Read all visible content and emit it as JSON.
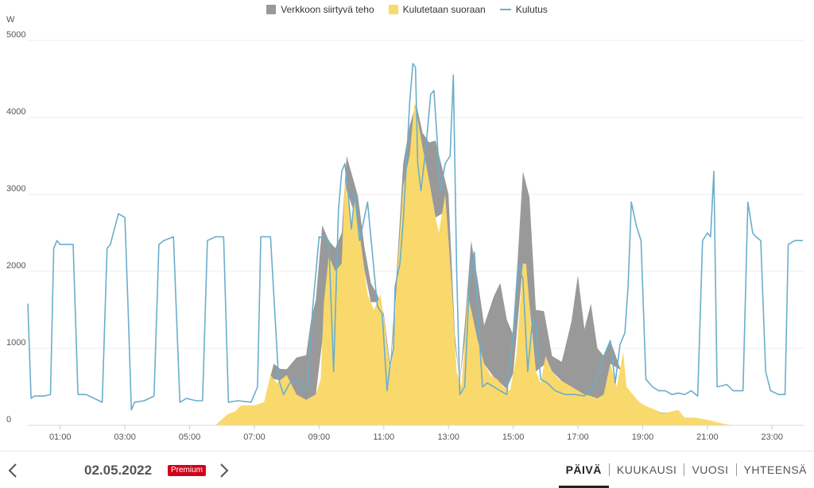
{
  "chart_data": {
    "type": "area",
    "ylabel": "W",
    "ylim": [
      0,
      5000
    ],
    "yticks": [
      "0",
      "1000",
      "2000",
      "3000",
      "4000",
      "5000"
    ],
    "xlim": [
      0,
      24
    ],
    "xticks": [
      "01:00",
      "03:00",
      "05:00",
      "07:00",
      "09:00",
      "11:00",
      "13:00",
      "15:00",
      "17:00",
      "19:00",
      "21:00",
      "23:00"
    ],
    "grid": true,
    "legend_position": "top-center",
    "series": [
      {
        "name": "Verkkoon siirtyvä teho",
        "kind": "stacked-area",
        "color": "#999999",
        "points": [
          [
            7.45,
            0
          ],
          [
            7.6,
            200
          ],
          [
            7.8,
            150
          ],
          [
            8.0,
            80
          ],
          [
            8.3,
            480
          ],
          [
            8.6,
            580
          ],
          [
            8.75,
            1000
          ],
          [
            8.9,
            1230
          ],
          [
            9.1,
            1500
          ],
          [
            9.3,
            200
          ],
          [
            9.5,
            300
          ],
          [
            9.7,
            400
          ],
          [
            9.85,
            450
          ],
          [
            10.2,
            350
          ],
          [
            10.4,
            300
          ],
          [
            10.6,
            250
          ],
          [
            10.8,
            100
          ],
          [
            11.0,
            50
          ],
          [
            11.2,
            80
          ],
          [
            11.4,
            200
          ],
          [
            11.6,
            300
          ],
          [
            11.8,
            400
          ],
          [
            12.0,
            100
          ],
          [
            12.2,
            200
          ],
          [
            12.4,
            500
          ],
          [
            12.6,
            1000
          ],
          [
            12.8,
            600
          ],
          [
            13.0,
            600
          ],
          [
            13.2,
            100
          ],
          [
            13.35,
            0
          ],
          [
            13.5,
            200
          ],
          [
            13.7,
            900
          ],
          [
            13.9,
            800
          ],
          [
            14.1,
            500
          ],
          [
            14.4,
            1050
          ],
          [
            14.6,
            1300
          ],
          [
            14.8,
            900
          ],
          [
            15.0,
            500
          ],
          [
            15.3,
            1200
          ],
          [
            15.5,
            1400
          ],
          [
            15.7,
            800
          ],
          [
            15.95,
            700
          ],
          [
            16.2,
            200
          ],
          [
            16.5,
            250
          ],
          [
            16.8,
            850
          ],
          [
            17.0,
            1500
          ],
          [
            17.2,
            850
          ],
          [
            17.4,
            1200
          ],
          [
            17.6,
            650
          ],
          [
            17.8,
            500
          ],
          [
            18.0,
            300
          ],
          [
            18.3,
            20
          ],
          [
            18.5,
            0
          ],
          [
            19.0,
            0
          ],
          [
            19.2,
            0
          ],
          [
            19.4,
            0
          ],
          [
            19.6,
            10
          ],
          [
            19.8,
            0
          ]
        ]
      },
      {
        "name": "Kulutetaan suoraan",
        "kind": "area",
        "color": "#f9d96b",
        "points": [
          [
            5.8,
            0
          ],
          [
            6.0,
            80
          ],
          [
            6.2,
            150
          ],
          [
            6.4,
            180
          ],
          [
            6.6,
            260
          ],
          [
            7.0,
            260
          ],
          [
            7.3,
            300
          ],
          [
            7.5,
            650
          ],
          [
            7.7,
            550
          ],
          [
            8.0,
            650
          ],
          [
            8.3,
            400
          ],
          [
            8.6,
            330
          ],
          [
            8.9,
            400
          ],
          [
            9.05,
            600
          ],
          [
            9.15,
            1600
          ],
          [
            9.3,
            2200
          ],
          [
            9.5,
            2000
          ],
          [
            9.7,
            2100
          ],
          [
            9.8,
            3200
          ],
          [
            10.0,
            2600
          ],
          [
            10.1,
            2900
          ],
          [
            10.25,
            2500
          ],
          [
            10.5,
            1700
          ],
          [
            10.7,
            1500
          ],
          [
            10.9,
            1700
          ],
          [
            11.0,
            1400
          ],
          [
            11.2,
            700
          ],
          [
            11.3,
            1000
          ],
          [
            11.45,
            2200
          ],
          [
            11.6,
            3100
          ],
          [
            11.8,
            3500
          ],
          [
            11.95,
            4200
          ],
          [
            12.2,
            3600
          ],
          [
            12.35,
            3300
          ],
          [
            12.55,
            2800
          ],
          [
            12.7,
            2500
          ],
          [
            12.9,
            3000
          ],
          [
            13.1,
            1800
          ],
          [
            13.25,
            700
          ],
          [
            13.4,
            500
          ],
          [
            13.6,
            1700
          ],
          [
            13.7,
            1500
          ],
          [
            13.9,
            1100
          ],
          [
            14.1,
            800
          ],
          [
            14.3,
            650
          ],
          [
            14.5,
            600
          ],
          [
            14.7,
            500
          ],
          [
            14.9,
            450
          ],
          [
            15.1,
            900
          ],
          [
            15.3,
            2100
          ],
          [
            15.4,
            2100
          ],
          [
            15.55,
            1300
          ],
          [
            15.7,
            700
          ],
          [
            15.85,
            550
          ],
          [
            16.0,
            900
          ],
          [
            16.2,
            700
          ],
          [
            16.4,
            600
          ],
          [
            16.6,
            550
          ],
          [
            16.8,
            500
          ],
          [
            17.0,
            450
          ],
          [
            17.2,
            400
          ],
          [
            17.4,
            380
          ],
          [
            17.6,
            350
          ],
          [
            17.8,
            400
          ],
          [
            18.0,
            800
          ],
          [
            18.2,
            500
          ],
          [
            18.4,
            950
          ],
          [
            18.5,
            500
          ],
          [
            18.7,
            400
          ],
          [
            18.9,
            300
          ],
          [
            19.1,
            250
          ],
          [
            19.4,
            200
          ],
          [
            19.6,
            150
          ],
          [
            19.9,
            180
          ],
          [
            20.1,
            200
          ],
          [
            20.3,
            100
          ],
          [
            20.6,
            100
          ],
          [
            20.9,
            80
          ],
          [
            21.2,
            50
          ],
          [
            21.5,
            20
          ],
          [
            21.8,
            0
          ]
        ]
      },
      {
        "name": "Kulutus",
        "kind": "line",
        "color": "#6aaecb",
        "points": [
          [
            0.0,
            1580
          ],
          [
            0.1,
            350
          ],
          [
            0.2,
            380
          ],
          [
            0.5,
            380
          ],
          [
            0.7,
            400
          ],
          [
            0.8,
            2300
          ],
          [
            0.9,
            2400
          ],
          [
            1.0,
            2350
          ],
          [
            1.4,
            2350
          ],
          [
            1.55,
            400
          ],
          [
            1.8,
            400
          ],
          [
            2.2,
            320
          ],
          [
            2.3,
            300
          ],
          [
            2.45,
            2300
          ],
          [
            2.55,
            2350
          ],
          [
            2.8,
            2750
          ],
          [
            3.0,
            2700
          ],
          [
            3.1,
            1500
          ],
          [
            3.2,
            200
          ],
          [
            3.3,
            300
          ],
          [
            3.6,
            320
          ],
          [
            3.9,
            380
          ],
          [
            4.05,
            2350
          ],
          [
            4.2,
            2400
          ],
          [
            4.5,
            2450
          ],
          [
            4.7,
            300
          ],
          [
            4.9,
            350
          ],
          [
            5.2,
            320
          ],
          [
            5.4,
            320
          ],
          [
            5.55,
            2400
          ],
          [
            5.8,
            2450
          ],
          [
            6.05,
            2450
          ],
          [
            6.2,
            300
          ],
          [
            6.5,
            320
          ],
          [
            6.9,
            300
          ],
          [
            7.1,
            500
          ],
          [
            7.2,
            2450
          ],
          [
            7.5,
            2450
          ],
          [
            7.75,
            600
          ],
          [
            7.9,
            400
          ],
          [
            8.1,
            550
          ],
          [
            8.3,
            600
          ],
          [
            8.5,
            450
          ],
          [
            8.65,
            500
          ],
          [
            8.8,
            1500
          ],
          [
            9.0,
            2450
          ],
          [
            9.3,
            2400
          ],
          [
            9.45,
            700
          ],
          [
            9.6,
            2800
          ],
          [
            9.7,
            3300
          ],
          [
            9.8,
            3400
          ],
          [
            9.9,
            3000
          ],
          [
            10.0,
            2550
          ],
          [
            10.1,
            3000
          ],
          [
            10.25,
            2400
          ],
          [
            10.4,
            2700
          ],
          [
            10.5,
            2900
          ],
          [
            10.7,
            2000
          ],
          [
            10.8,
            1550
          ],
          [
            10.95,
            1450
          ],
          [
            11.1,
            450
          ],
          [
            11.2,
            800
          ],
          [
            11.3,
            1000
          ],
          [
            11.35,
            1800
          ],
          [
            11.5,
            2100
          ],
          [
            11.6,
            2650
          ],
          [
            11.7,
            3400
          ],
          [
            11.8,
            4200
          ],
          [
            11.9,
            4700
          ],
          [
            11.98,
            4650
          ],
          [
            12.05,
            3400
          ],
          [
            12.15,
            3050
          ],
          [
            12.3,
            3600
          ],
          [
            12.45,
            4300
          ],
          [
            12.55,
            4350
          ],
          [
            12.65,
            3700
          ],
          [
            12.75,
            3050
          ],
          [
            12.9,
            3400
          ],
          [
            13.05,
            3500
          ],
          [
            13.15,
            4550
          ],
          [
            13.25,
            2050
          ],
          [
            13.35,
            400
          ],
          [
            13.5,
            500
          ],
          [
            13.65,
            1900
          ],
          [
            13.8,
            2250
          ],
          [
            13.95,
            1150
          ],
          [
            14.05,
            500
          ],
          [
            14.2,
            550
          ],
          [
            14.4,
            500
          ],
          [
            14.6,
            450
          ],
          [
            14.8,
            400
          ],
          [
            15.0,
            1200
          ],
          [
            15.15,
            2100
          ],
          [
            15.3,
            1900
          ],
          [
            15.45,
            700
          ],
          [
            15.6,
            1400
          ],
          [
            15.7,
            1300
          ],
          [
            15.85,
            600
          ],
          [
            16.05,
            550
          ],
          [
            16.3,
            450
          ],
          [
            16.6,
            400
          ],
          [
            16.9,
            400
          ],
          [
            17.2,
            380
          ],
          [
            17.5,
            500
          ],
          [
            17.8,
            900
          ],
          [
            18.0,
            1100
          ],
          [
            18.15,
            550
          ],
          [
            18.3,
            1050
          ],
          [
            18.45,
            1200
          ],
          [
            18.55,
            1800
          ],
          [
            18.65,
            2900
          ],
          [
            18.8,
            2600
          ],
          [
            18.95,
            2400
          ],
          [
            19.1,
            600
          ],
          [
            19.3,
            500
          ],
          [
            19.5,
            450
          ],
          [
            19.7,
            450
          ],
          [
            19.9,
            400
          ],
          [
            20.1,
            420
          ],
          [
            20.3,
            400
          ],
          [
            20.5,
            450
          ],
          [
            20.7,
            380
          ],
          [
            20.85,
            2400
          ],
          [
            21.0,
            2500
          ],
          [
            21.1,
            2450
          ],
          [
            21.2,
            3300
          ],
          [
            21.3,
            500
          ],
          [
            21.6,
            530
          ],
          [
            21.8,
            450
          ],
          [
            22.1,
            450
          ],
          [
            22.25,
            2900
          ],
          [
            22.4,
            2500
          ],
          [
            22.5,
            2450
          ],
          [
            22.65,
            2400
          ],
          [
            22.8,
            700
          ],
          [
            22.95,
            450
          ],
          [
            23.2,
            400
          ],
          [
            23.4,
            400
          ],
          [
            23.5,
            2350
          ],
          [
            23.7,
            2400
          ],
          [
            23.95,
            2400
          ]
        ]
      }
    ]
  },
  "legend": {
    "items": [
      {
        "label": "Verkkoon siirtyvä teho",
        "color": "#999999"
      },
      {
        "label": "Kulutetaan suoraan",
        "color": "#f9d96b"
      },
      {
        "label": "Kulutus",
        "color": "#6aaecb"
      }
    ]
  },
  "footer": {
    "date": "02.05.2022",
    "badge": "Premium",
    "tabs": [
      "PÄIVÄ",
      "KUUKAUSI",
      "VUOSI",
      "YHTEENSÄ"
    ],
    "active_tab": "PÄIVÄ"
  }
}
